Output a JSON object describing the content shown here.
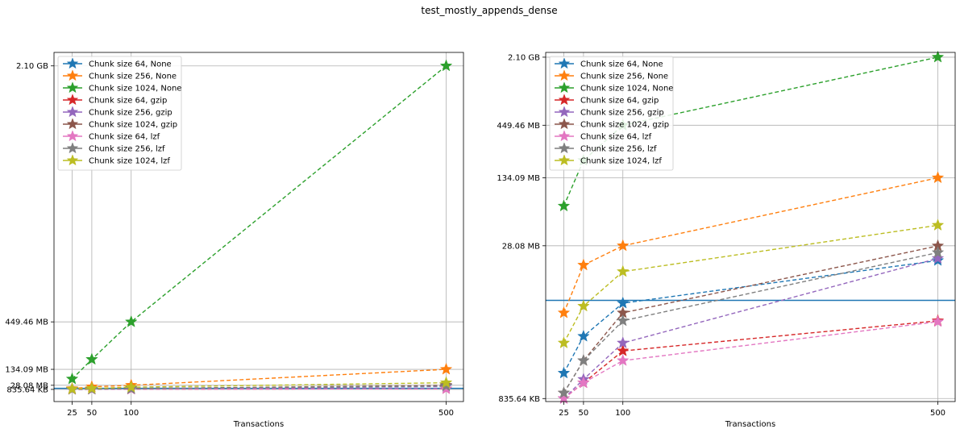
{
  "figure_title": "test_mostly_appends_dense",
  "chart_data": [
    {
      "type": "line",
      "scale": "linear",
      "xlabel": "Transactions",
      "x": [
        25,
        50,
        100,
        500
      ],
      "yticks": [
        {
          "value": 0.83564,
          "label": "835.64 KB"
        },
        {
          "value": 28.08,
          "label": "28.08 MB"
        },
        {
          "value": 134.09,
          "label": "134.09 MB"
        },
        {
          "value": 449.46,
          "label": "449.46 MB"
        },
        {
          "value": 2150.4,
          "label": "2.10 GB"
        }
      ],
      "ylim": [
        -80,
        2240
      ],
      "xlim": [
        2,
        522
      ],
      "hline": 8,
      "grid": true,
      "legend_position": "upper-left",
      "series": [
        {
          "name": "Chunk size 64, None",
          "color": "#1f77b4",
          "values": [
            1.5,
            3.5,
            7.5,
            20
          ]
        },
        {
          "name": "Chunk size 256, None",
          "color": "#ff7f0e",
          "values": [
            6,
            18,
            28.08,
            134.09
          ]
        },
        {
          "name": "Chunk size 1024, None",
          "color": "#2ca02c",
          "values": [
            70,
            200,
            449.46,
            2150.4
          ]
        },
        {
          "name": "Chunk size 64, gzip",
          "color": "#d62728",
          "values": [
            0.83564,
            1.2,
            2.5,
            5
          ]
        },
        {
          "name": "Chunk size 256, gzip",
          "color": "#9467bd",
          "values": [
            0.83564,
            1.3,
            3,
            21
          ]
        },
        {
          "name": "Chunk size 1024, gzip",
          "color": "#8c564b",
          "values": [
            0.95,
            2,
            6,
            28
          ]
        },
        {
          "name": "Chunk size 64, lzf",
          "color": "#e377c2",
          "values": [
            0.83564,
            1.2,
            2,
            4.9
          ]
        },
        {
          "name": "Chunk size 256, lzf",
          "color": "#7f7f7f",
          "values": [
            0.95,
            2,
            5,
            24
          ]
        },
        {
          "name": "Chunk size 1024, lzf",
          "color": "#bcbd22",
          "values": [
            3,
            7,
            15.5,
            45
          ]
        }
      ]
    },
    {
      "type": "line",
      "scale": "log",
      "xlabel": "Transactions",
      "x": [
        25,
        50,
        100,
        500
      ],
      "yticks": [
        {
          "value": 0.83564,
          "label": "835.64 KB"
        },
        {
          "value": 28.08,
          "label": "28.08 MB"
        },
        {
          "value": 134.09,
          "label": "134.09 MB"
        },
        {
          "value": 449.46,
          "label": "449.46 MB"
        },
        {
          "value": 2150.4,
          "label": "2.10 GB"
        }
      ],
      "ylim": [
        0.78,
        2400
      ],
      "xlim": [
        2,
        522
      ],
      "hline": 8,
      "grid": true,
      "legend_position": "upper-left",
      "series": [
        {
          "name": "Chunk size 64, None",
          "color": "#1f77b4",
          "values": [
            1.5,
            3.5,
            7.5,
            20
          ]
        },
        {
          "name": "Chunk size 256, None",
          "color": "#ff7f0e",
          "values": [
            6,
            18,
            28.08,
            134.09
          ]
        },
        {
          "name": "Chunk size 1024, None",
          "color": "#2ca02c",
          "values": [
            70,
            200,
            449.46,
            2150.4
          ]
        },
        {
          "name": "Chunk size 64, gzip",
          "color": "#d62728",
          "values": [
            0.83564,
            1.2,
            2.5,
            5
          ]
        },
        {
          "name": "Chunk size 256, gzip",
          "color": "#9467bd",
          "values": [
            0.83564,
            1.3,
            3,
            21
          ]
        },
        {
          "name": "Chunk size 1024, gzip",
          "color": "#8c564b",
          "values": [
            0.95,
            2,
            6,
            28
          ]
        },
        {
          "name": "Chunk size 64, lzf",
          "color": "#e377c2",
          "values": [
            0.83564,
            1.2,
            2,
            4.9
          ]
        },
        {
          "name": "Chunk size 256, lzf",
          "color": "#7f7f7f",
          "values": [
            0.95,
            2,
            5,
            24
          ]
        },
        {
          "name": "Chunk size 1024, lzf",
          "color": "#bcbd22",
          "values": [
            3,
            7,
            15.5,
            45
          ]
        }
      ]
    }
  ]
}
